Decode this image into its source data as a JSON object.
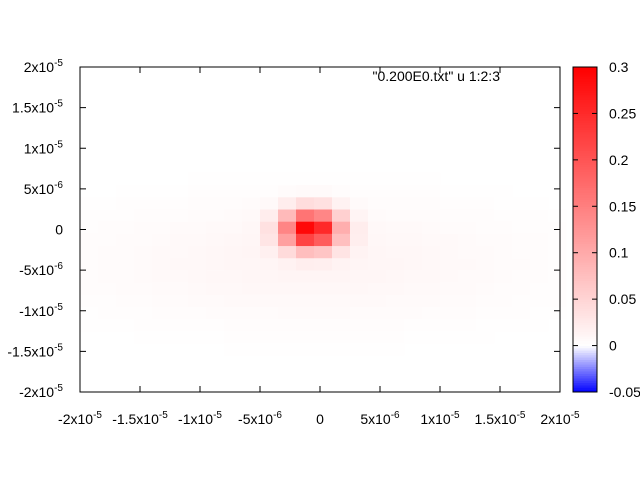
{
  "chart_data": {
    "type": "heatmap",
    "legend_text": "\"0.200E0.txt\" u 1:2:3",
    "legend_position": "top-right",
    "xlim": [
      -2e-05,
      2e-05
    ],
    "ylim": [
      -2e-05,
      2e-05
    ],
    "x_ticks": [
      {
        "value": -2e-05,
        "mant": "-2x10",
        "exp": "-5"
      },
      {
        "value": -1.5e-05,
        "mant": "-1.5x10",
        "exp": "-5"
      },
      {
        "value": -1e-05,
        "mant": "-1x10",
        "exp": "-5"
      },
      {
        "value": -5e-06,
        "mant": "-5x10",
        "exp": "-6"
      },
      {
        "value": 0,
        "mant": "0",
        "exp": ""
      },
      {
        "value": 5e-06,
        "mant": "5x10",
        "exp": "-6"
      },
      {
        "value": 1e-05,
        "mant": "1x10",
        "exp": "-5"
      },
      {
        "value": 1.5e-05,
        "mant": "1.5x10",
        "exp": "-5"
      },
      {
        "value": 2e-05,
        "mant": "2x10",
        "exp": "-5"
      }
    ],
    "y_ticks": [
      {
        "value": 2e-05,
        "mant": "2x10",
        "exp": "-5"
      },
      {
        "value": 1.5e-05,
        "mant": "1.5x10",
        "exp": "-5"
      },
      {
        "value": 1e-05,
        "mant": "1x10",
        "exp": "-5"
      },
      {
        "value": 5e-06,
        "mant": "5x10",
        "exp": "-6"
      },
      {
        "value": 0,
        "mant": "0",
        "exp": ""
      },
      {
        "value": -5e-06,
        "mant": "-5x10",
        "exp": "-6"
      },
      {
        "value": -1e-05,
        "mant": "-1x10",
        "exp": "-5"
      },
      {
        "value": -1.5e-05,
        "mant": "-1.5x10",
        "exp": "-5"
      },
      {
        "value": -2e-05,
        "mant": "-2x10",
        "exp": "-5"
      }
    ],
    "colorbar": {
      "range": [
        -0.05,
        0.3
      ],
      "ticks": [
        {
          "value": 0.3,
          "label": "0.3"
        },
        {
          "value": 0.25,
          "label": "0.25"
        },
        {
          "value": 0.2,
          "label": "0.2"
        },
        {
          "value": 0.15,
          "label": "0.15"
        },
        {
          "value": 0.1,
          "label": "0.1"
        },
        {
          "value": 0.05,
          "label": "0.05"
        },
        {
          "value": 0,
          "label": "0"
        },
        {
          "value": -0.05,
          "label": "-0.05"
        }
      ],
      "colors": {
        "low": "#0000ff",
        "mid": "#ffffff",
        "high": "#ff0000"
      }
    },
    "grid": false,
    "cell_size": 1.5e-06,
    "field": {
      "peak": {
        "x": -7.5e-07,
        "y": 0,
        "value": 0.3,
        "sigma": 1.6e-06
      },
      "halo": {
        "x": -7.5e-07,
        "y": -4e-06,
        "value": 0.012,
        "sigma_x": 1.2e-05,
        "sigma_y": 5e-06
      }
    }
  }
}
